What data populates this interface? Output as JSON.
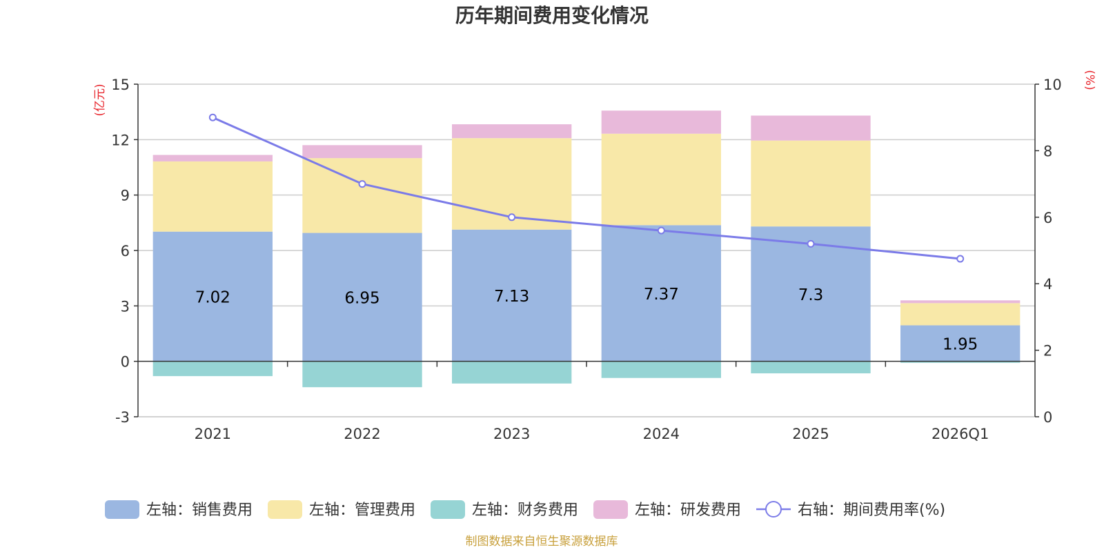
{
  "chart_data": {
    "type": "bar",
    "title": "历年期间费用变化情况",
    "categories": [
      "2021",
      "2022",
      "2023",
      "2024",
      "2025",
      "2026Q1"
    ],
    "series": [
      {
        "name": "左轴：销售费用",
        "axis": "left",
        "color": "#9bb7e1",
        "values": [
          7.02,
          6.95,
          7.13,
          7.37,
          7.3,
          1.95
        ],
        "show_labels": true
      },
      {
        "name": "左轴：管理费用",
        "axis": "left",
        "color": "#f8e8a8",
        "values": [
          3.8,
          4.05,
          4.95,
          4.95,
          4.65,
          1.2
        ]
      },
      {
        "name": "左轴：财务费用",
        "axis": "left",
        "color": "#96d4d4",
        "values": [
          -0.8,
          -1.4,
          -1.2,
          -0.9,
          -0.65,
          -0.08
        ]
      },
      {
        "name": "左轴：研发费用",
        "axis": "left",
        "color": "#e8b9da",
        "values": [
          0.35,
          0.7,
          0.75,
          1.25,
          1.35,
          0.15
        ]
      },
      {
        "name": "右轴：期间费用率(%)",
        "axis": "right",
        "type": "line",
        "color": "#7b7be8",
        "values": [
          9.0,
          7.0,
          6.0,
          5.6,
          5.2,
          4.75
        ]
      }
    ],
    "left_axis": {
      "label": "(亿元)",
      "ylim": [
        -3,
        15
      ],
      "ticks": [
        -3,
        0,
        3,
        6,
        9,
        12,
        15
      ]
    },
    "right_axis": {
      "label": "(%)",
      "ylim": [
        0,
        10
      ],
      "ticks": [
        0,
        2,
        4,
        6,
        8,
        10
      ]
    },
    "grid": true,
    "legend": "bottom"
  },
  "source_note": "制图数据来自恒生聚源数据库",
  "colors": {
    "axis_unit": "#e8262d",
    "source": "#c8a03c",
    "grid": "#cccccc"
  }
}
